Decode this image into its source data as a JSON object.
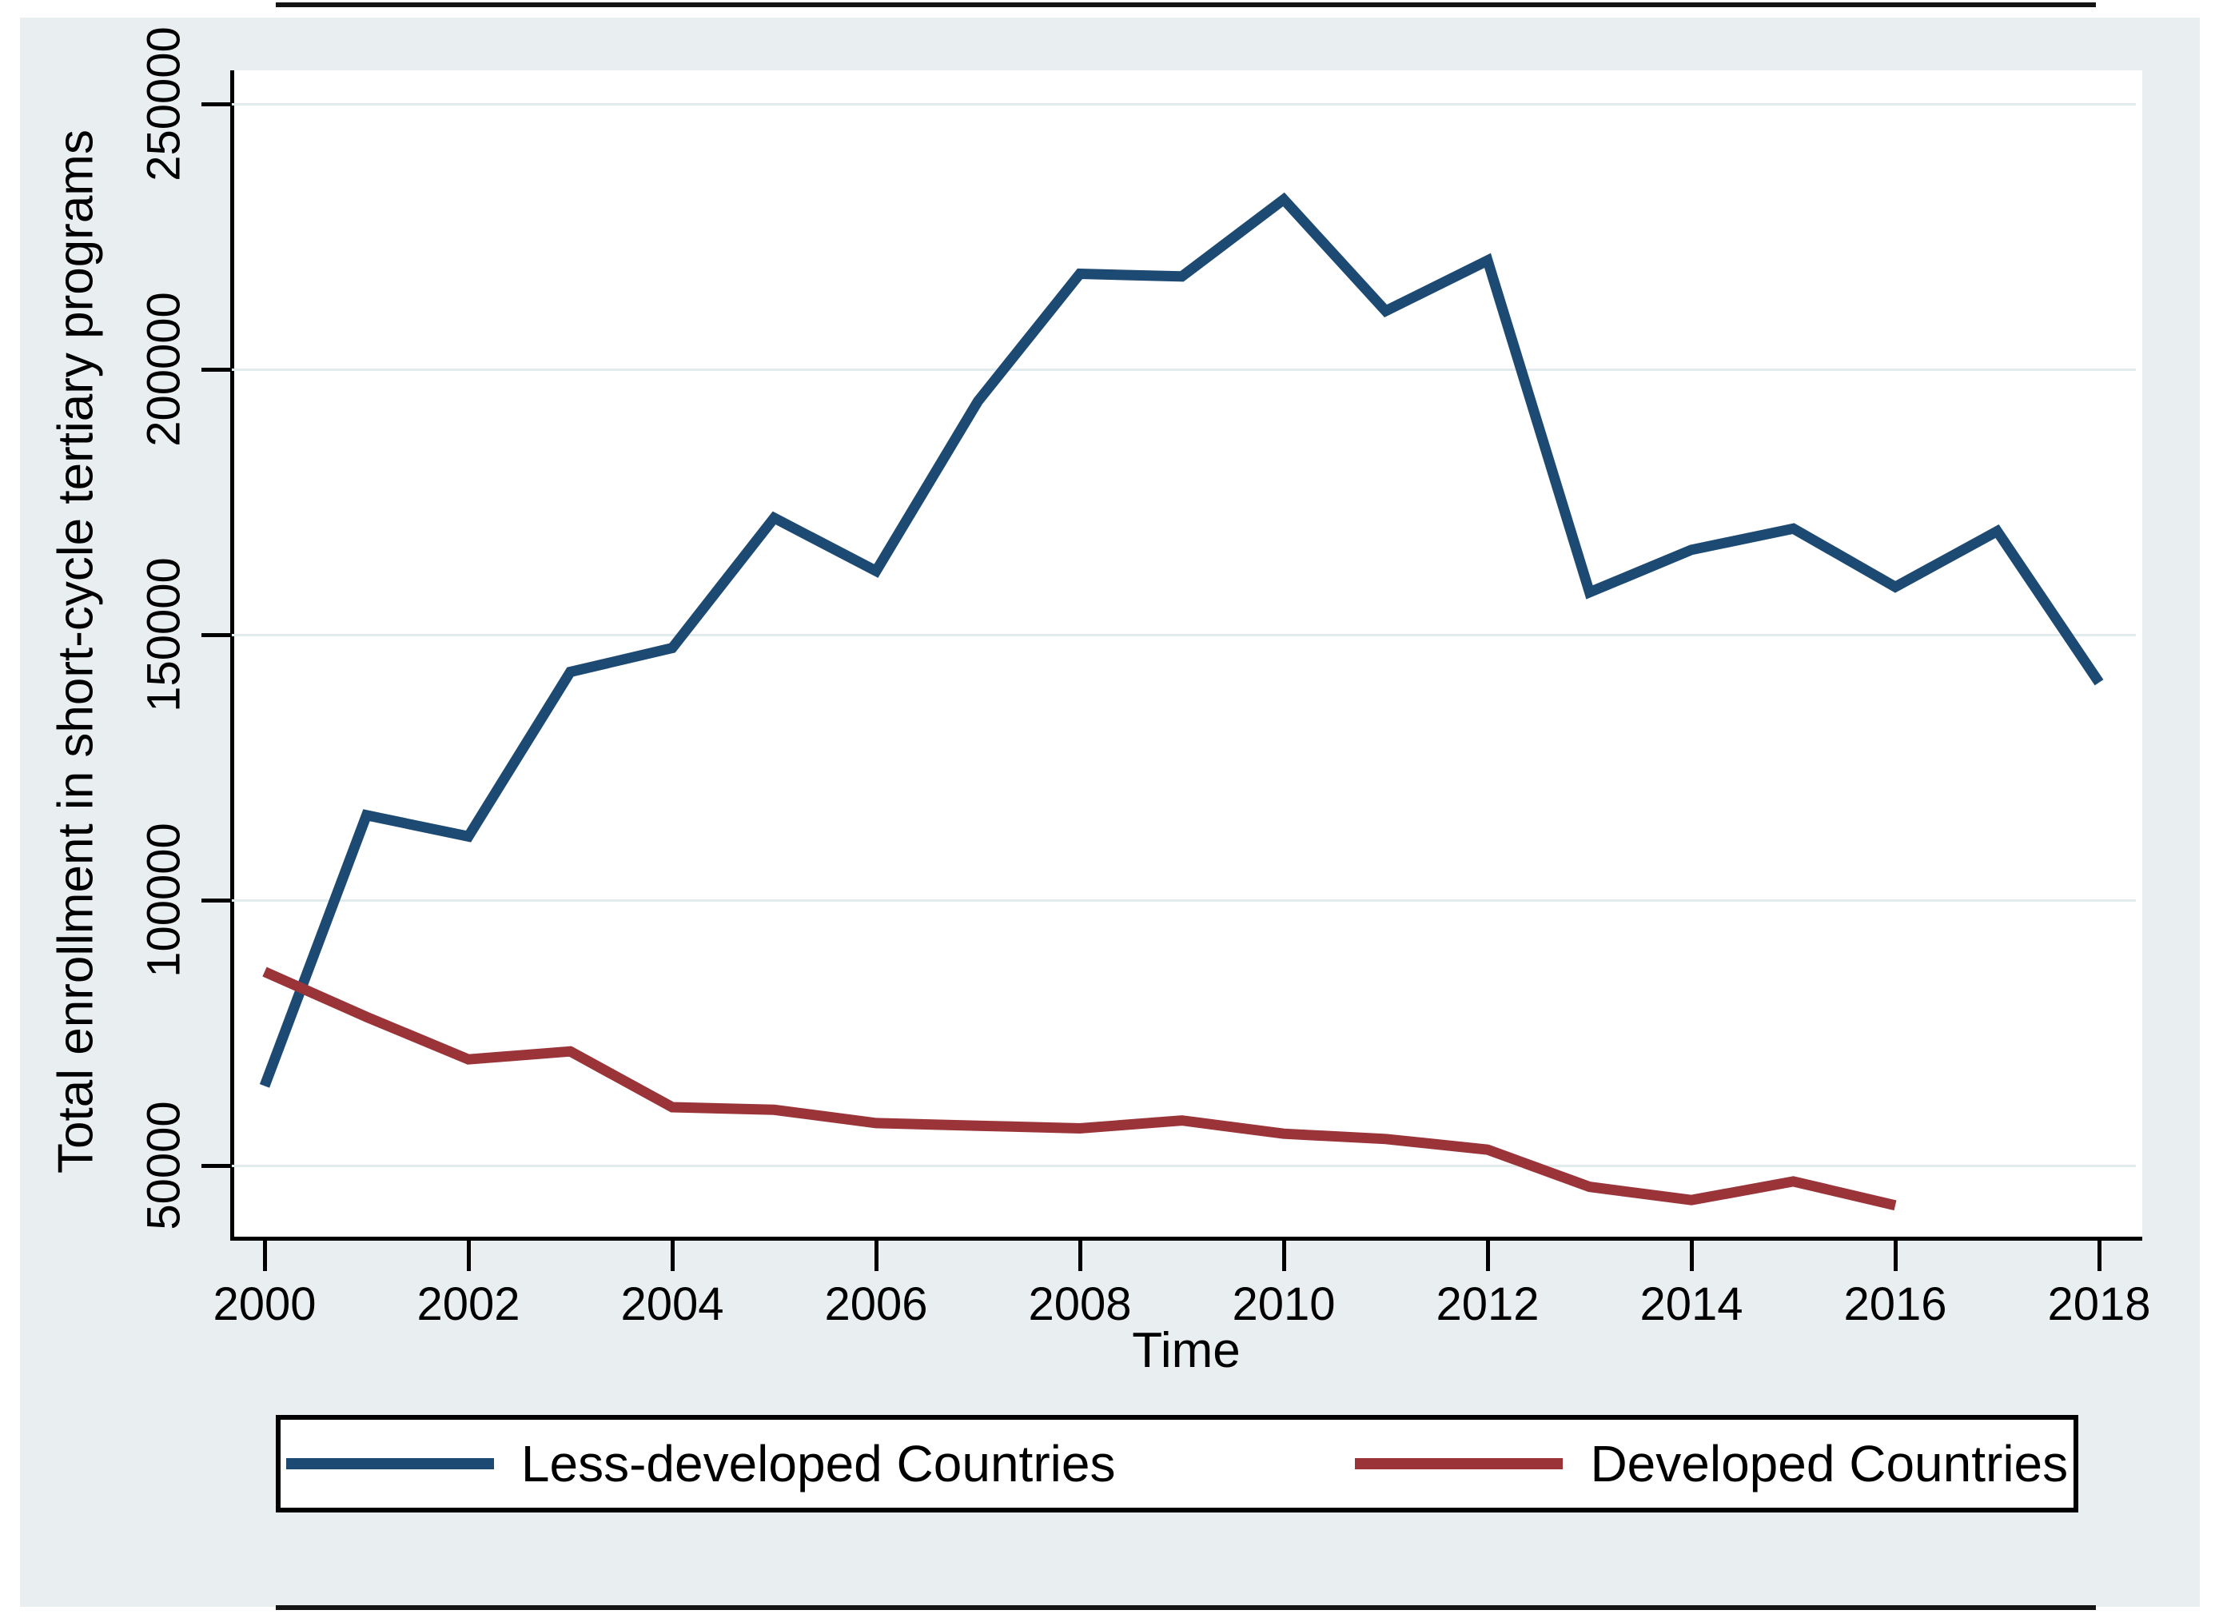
{
  "figure_type": "stata-style line chart screenshot",
  "colors": {
    "figure_background": "#e9eff1",
    "plot_background": "#ffffff",
    "gridline": "#e2ebee",
    "axis": "#000000",
    "series_less_developed": "#1d4a73",
    "series_developed": "#9a3439",
    "legend_border": "#000000",
    "edge_artifact": "#141414"
  },
  "chart_data": {
    "type": "line",
    "title": "",
    "xlabel": "Time",
    "ylabel": "Total enrollment in short-cycle tertiary programs",
    "x_ticks": [
      2000,
      2002,
      2004,
      2006,
      2008,
      2010,
      2012,
      2014,
      2016,
      2018
    ],
    "y_ticks": [
      50000,
      100000,
      150000,
      200000,
      250000
    ],
    "xlim": [
      1999.66,
      2018.43
    ],
    "ylim": [
      35800,
      256300
    ],
    "grid": "horizontal-only",
    "legend_position": "bottom",
    "series": [
      {
        "name": "Less-developed Countries",
        "color": "#1d4a73",
        "x": [
          2000,
          2001,
          2002,
          2003,
          2004,
          2005,
          2006,
          2007,
          2008,
          2009,
          2010,
          2011,
          2012,
          2013,
          2014,
          2015,
          2016,
          2017,
          2018
        ],
        "values": [
          65000,
          116000,
          112000,
          143000,
          147500,
          172000,
          162000,
          194000,
          218000,
          217500,
          232000,
          211000,
          220500,
          158000,
          166000,
          170000,
          159000,
          169500,
          141000
        ]
      },
      {
        "name": "Developed Countries",
        "color": "#9a3439",
        "x": [
          2000,
          2001,
          2002,
          2003,
          2004,
          2005,
          2006,
          2007,
          2008,
          2009,
          2010,
          2011,
          2012,
          2013,
          2014,
          2015,
          2016
        ],
        "values": [
          86500,
          78000,
          70000,
          71500,
          61000,
          60500,
          58000,
          57500,
          57000,
          58500,
          56000,
          55000,
          53000,
          46000,
          43500,
          47000,
          42500
        ]
      }
    ]
  }
}
